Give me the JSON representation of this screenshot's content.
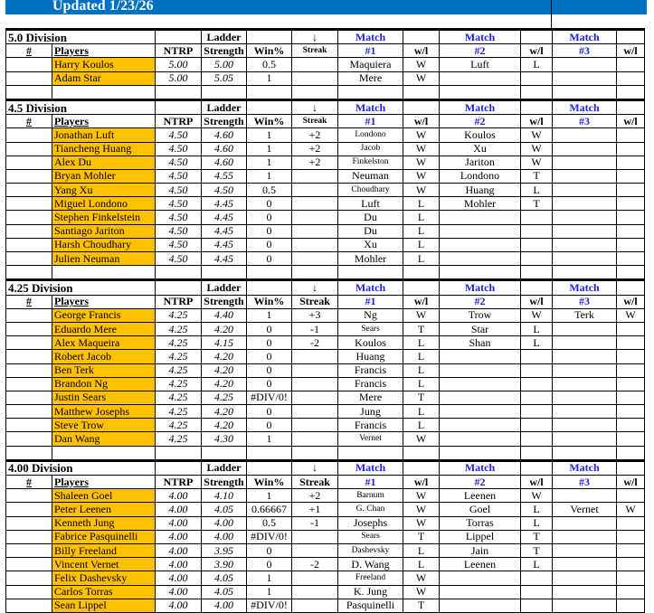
{
  "header": {
    "title": "Updated 1/23/26"
  },
  "columns": {
    "num": "#",
    "players": "Players",
    "ntrp": "NTRP",
    "ladder": "Ladder",
    "strength": "Strength",
    "win": "Win%",
    "arrow": "↓",
    "streak": "Streak",
    "match": "Match",
    "m1": "#1",
    "m2": "#2",
    "m3": "#3",
    "wl": "w/l"
  },
  "colors": {
    "header_bar": "#0070c0",
    "player_cell": "#ffc000",
    "match_header": "#2020e0"
  },
  "divisions": [
    {
      "title": "5.0  Division",
      "players": [
        [
          "Harry Koulos",
          "5.00",
          "5.00",
          "0.5",
          "",
          "Maquiera",
          "W",
          "Luft",
          "L",
          "",
          ""
        ],
        [
          "Adam Star",
          "5.00",
          "5.05",
          "1",
          "",
          "Mere",
          "W",
          "",
          "",
          "",
          ""
        ]
      ]
    },
    {
      "title": "4.5 Division",
      "players": [
        [
          "Jonathan Luft",
          "4.50",
          "4.60",
          "1",
          "+2",
          "Londono",
          "W",
          "Koulos",
          "W",
          "",
          ""
        ],
        [
          "Tiancheng Huang",
          "4.50",
          "4.60",
          "1",
          "+2",
          "Jacob",
          "W",
          "Xu",
          "W",
          "",
          ""
        ],
        [
          "Alex Du",
          "4.50",
          "4.60",
          "1",
          "+2",
          "Finkelston",
          "W",
          "Jariton",
          "W",
          "",
          ""
        ],
        [
          "Bryan Mohler",
          "4.50",
          "4.55",
          "1",
          "",
          "Neuman",
          "W",
          "Londono",
          "T",
          "",
          ""
        ],
        [
          "Yang Xu",
          "4.50",
          "4.50",
          "0.5",
          "",
          "Choudhary",
          "W",
          "Huang",
          "L",
          "",
          ""
        ],
        [
          "Miguel Londono",
          "4.50",
          "4.45",
          "0",
          "",
          "Luft",
          "L",
          "Mohler",
          "T",
          "",
          ""
        ],
        [
          "Stephen Finkelstein",
          "4.50",
          "4.45",
          "0",
          "",
          "Du",
          "L",
          "",
          "",
          "",
          ""
        ],
        [
          "Santiago Jariton",
          "4.50",
          "4.45",
          "0",
          "",
          "Du",
          "L",
          "",
          "",
          "",
          ""
        ],
        [
          "Harsh Choudhary",
          "4.50",
          "4.45",
          "0",
          "",
          "Xu",
          "L",
          "",
          "",
          "",
          ""
        ],
        [
          "Julien Neuman",
          "4.50",
          "4.45",
          "0",
          "",
          "Mohler",
          "L",
          "",
          "",
          "",
          ""
        ]
      ]
    },
    {
      "title": "4.25 Division",
      "players": [
        [
          "George Francis",
          "4.25",
          "4.40",
          "1",
          "+3",
          "Ng",
          "W",
          "Trow",
          "W",
          "Terk",
          "W"
        ],
        [
          "Eduardo Mere",
          "4.25",
          "4.20",
          "0",
          "-1",
          "Sears",
          "T",
          "Star",
          "L",
          "",
          ""
        ],
        [
          "Alex Maqueira",
          "4.25",
          "4.15",
          "0",
          "-2",
          "Koulos",
          "L",
          "Shan",
          "L",
          "",
          ""
        ],
        [
          "Robert Jacob",
          "4.25",
          "4.20",
          "0",
          "",
          "Huang",
          "L",
          "",
          "",
          "",
          ""
        ],
        [
          "Ben Terk",
          "4.25",
          "4.20",
          "0",
          "",
          "Francis",
          "L",
          "",
          "",
          "",
          ""
        ],
        [
          "Brandon Ng",
          "4.25",
          "4.20",
          "0",
          "",
          "Francis",
          "L",
          "",
          "",
          "",
          ""
        ],
        [
          "Justin Sears",
          "4.25",
          "4.25",
          "#DIV/0!",
          "",
          "Mere",
          "T",
          "",
          "",
          "",
          ""
        ],
        [
          "Matthew Josephs",
          "4.25",
          "4.20",
          "0",
          "",
          "Jung",
          "L",
          "",
          "",
          "",
          ""
        ],
        [
          "Steve Trow",
          "4.25",
          "4.20",
          "0",
          "",
          "Francis",
          "L",
          "",
          "",
          "",
          ""
        ],
        [
          "Dan Wang",
          "4.25",
          "4.30",
          "1",
          "",
          "Vernet",
          "W",
          "",
          "",
          "",
          ""
        ]
      ]
    },
    {
      "title": "4.00 Division",
      "players": [
        [
          "Shaleen Goel",
          "4.00",
          "4.10",
          "1",
          "+2",
          "Barnum",
          "W",
          "Leenen",
          "W",
          "",
          ""
        ],
        [
          "Peter Leenen",
          "4.00",
          "4.05",
          "0.66667",
          "+1",
          "G. Chan",
          "W",
          "Goel",
          "L",
          "Vernet",
          "W"
        ],
        [
          "Kenneth Jung",
          "4.00",
          "4.00",
          "0.5",
          "-1",
          "Josephs",
          "W",
          "Torras",
          "L",
          "",
          ""
        ],
        [
          "Fabrice Pasquinelli",
          "4.00",
          "4.00",
          "#DIV/0!",
          "",
          "Sears",
          "T",
          "Lippel",
          "T",
          "",
          ""
        ],
        [
          "Billy Freeland",
          "4.00",
          "3.95",
          "0",
          "",
          "Dashevsky",
          "L",
          "Jain",
          "T",
          "",
          ""
        ],
        [
          "Vincent Vernet",
          "4.00",
          "3.90",
          "0",
          "-2",
          "D. Wang",
          "L",
          "Leenen",
          "L",
          "",
          ""
        ],
        [
          "Felix Dashevsky",
          "4.00",
          "4.05",
          "1",
          "",
          "Freeland",
          "W",
          "",
          "",
          "",
          ""
        ],
        [
          "Carlos Torras",
          "4.00",
          "4.05",
          "1",
          "",
          "K. Jung",
          "W",
          "",
          "",
          "",
          ""
        ],
        [
          "Sean Lippel",
          "4.00",
          "4.00",
          "#DIV/0!",
          "",
          "Pasquinelli",
          "T",
          "",
          "",
          "",
          ""
        ]
      ]
    }
  ]
}
